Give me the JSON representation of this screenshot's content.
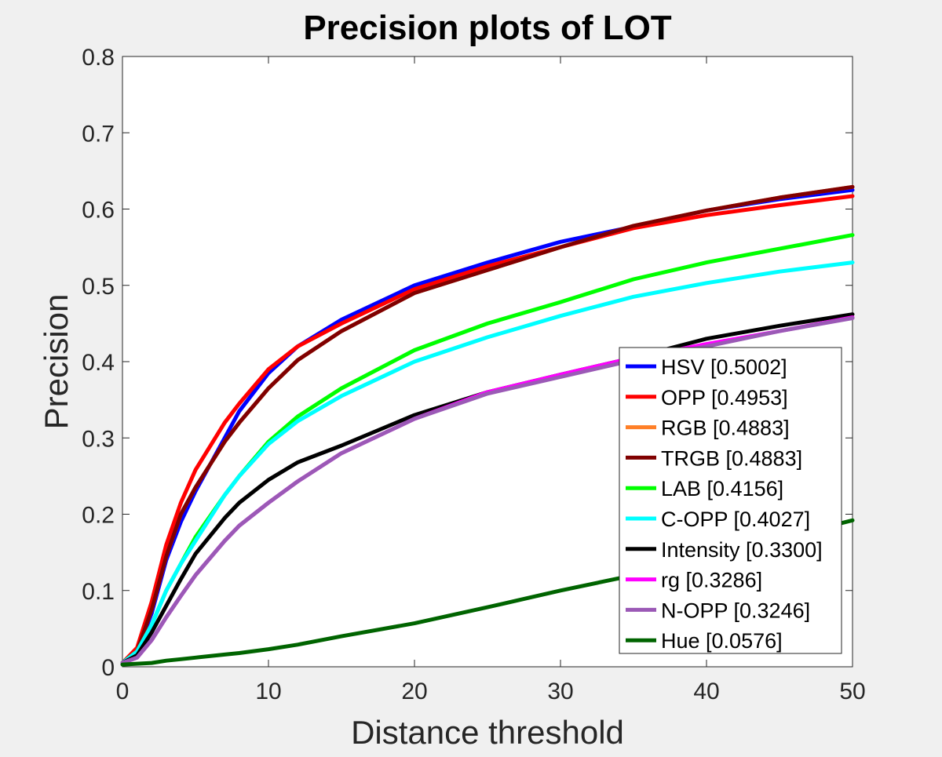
{
  "chart_data": {
    "type": "line",
    "title": "Precision plots of LOT",
    "xlabel": "Distance threshold",
    "ylabel": "Precision",
    "xlim": [
      0,
      50
    ],
    "ylim": [
      0,
      0.8
    ],
    "xticks": [
      0,
      10,
      20,
      30,
      40,
      50
    ],
    "xtick_labels": [
      "0",
      "10",
      "20",
      "30",
      "40",
      "50"
    ],
    "yticks": [
      0,
      0.1,
      0.2,
      0.3,
      0.4,
      0.5,
      0.6,
      0.7,
      0.8
    ],
    "ytick_labels": [
      "0",
      "0.1",
      "0.2",
      "0.3",
      "0.4",
      "0.5",
      "0.6",
      "0.7",
      "0.8"
    ],
    "grid": false,
    "legend_position": "lower-right",
    "x": [
      0,
      1,
      2,
      3,
      4,
      5,
      7,
      8,
      10,
      12,
      15,
      20,
      25,
      30,
      35,
      40,
      45,
      50
    ],
    "series": [
      {
        "name": "HSV [0.5002]",
        "color": "#0000ff",
        "values": [
          0.005,
          0.02,
          0.07,
          0.14,
          0.19,
          0.23,
          0.3,
          0.335,
          0.385,
          0.42,
          0.455,
          0.5,
          0.53,
          0.557,
          0.577,
          0.598,
          0.613,
          0.625
        ]
      },
      {
        "name": "OPP [0.4953]",
        "color": "#ff0000",
        "values": [
          0.005,
          0.025,
          0.085,
          0.16,
          0.215,
          0.258,
          0.32,
          0.345,
          0.39,
          0.42,
          0.45,
          0.495,
          0.525,
          0.55,
          0.575,
          0.592,
          0.605,
          0.617
        ]
      },
      {
        "name": "RGB [0.4883]",
        "color": "#ff7f27",
        "values": [
          0.005,
          0.02,
          0.075,
          0.145,
          0.2,
          0.235,
          0.295,
          0.32,
          0.365,
          0.402,
          0.44,
          0.49,
          0.52,
          0.55,
          0.578,
          0.598,
          0.615,
          0.629
        ]
      },
      {
        "name": "TRGB [0.4883]",
        "color": "#800000",
        "values": [
          0.005,
          0.02,
          0.075,
          0.145,
          0.2,
          0.235,
          0.295,
          0.32,
          0.365,
          0.402,
          0.44,
          0.49,
          0.52,
          0.55,
          0.578,
          0.598,
          0.615,
          0.629
        ]
      },
      {
        "name": "LAB [0.4156]",
        "color": "#00ff00",
        "values": [
          0.005,
          0.02,
          0.055,
          0.1,
          0.135,
          0.17,
          0.225,
          0.25,
          0.295,
          0.328,
          0.365,
          0.415,
          0.45,
          0.478,
          0.508,
          0.53,
          0.548,
          0.566
        ]
      },
      {
        "name": "C-OPP [0.4027]",
        "color": "#00ffff",
        "values": [
          0.005,
          0.02,
          0.055,
          0.1,
          0.135,
          0.165,
          0.225,
          0.25,
          0.292,
          0.322,
          0.355,
          0.4,
          0.432,
          0.46,
          0.485,
          0.503,
          0.518,
          0.53
        ]
      },
      {
        "name": "Intensity [0.3300]",
        "color": "#000000",
        "values": [
          0.005,
          0.015,
          0.045,
          0.08,
          0.115,
          0.148,
          0.195,
          0.215,
          0.245,
          0.268,
          0.29,
          0.33,
          0.36,
          0.383,
          0.405,
          0.43,
          0.447,
          0.462
        ]
      },
      {
        "name": "rg [0.3286]",
        "color": "#ff00ff",
        "values": [
          0.005,
          0.012,
          0.035,
          0.065,
          0.093,
          0.12,
          0.165,
          0.185,
          0.215,
          0.243,
          0.28,
          0.325,
          0.36,
          0.383,
          0.405,
          0.423,
          0.44,
          0.458
        ]
      },
      {
        "name": "N-OPP [0.3246]",
        "color": "#9b59b6",
        "values": [
          0.005,
          0.012,
          0.035,
          0.065,
          0.093,
          0.12,
          0.165,
          0.185,
          0.215,
          0.243,
          0.28,
          0.325,
          0.358,
          0.38,
          0.402,
          0.42,
          0.44,
          0.457
        ]
      },
      {
        "name": "Hue [0.0576]",
        "color": "#006400",
        "values": [
          0.003,
          0.004,
          0.005,
          0.008,
          0.01,
          0.012,
          0.016,
          0.018,
          0.023,
          0.029,
          0.04,
          0.057,
          0.078,
          0.1,
          0.12,
          0.145,
          0.168,
          0.192
        ]
      }
    ]
  }
}
